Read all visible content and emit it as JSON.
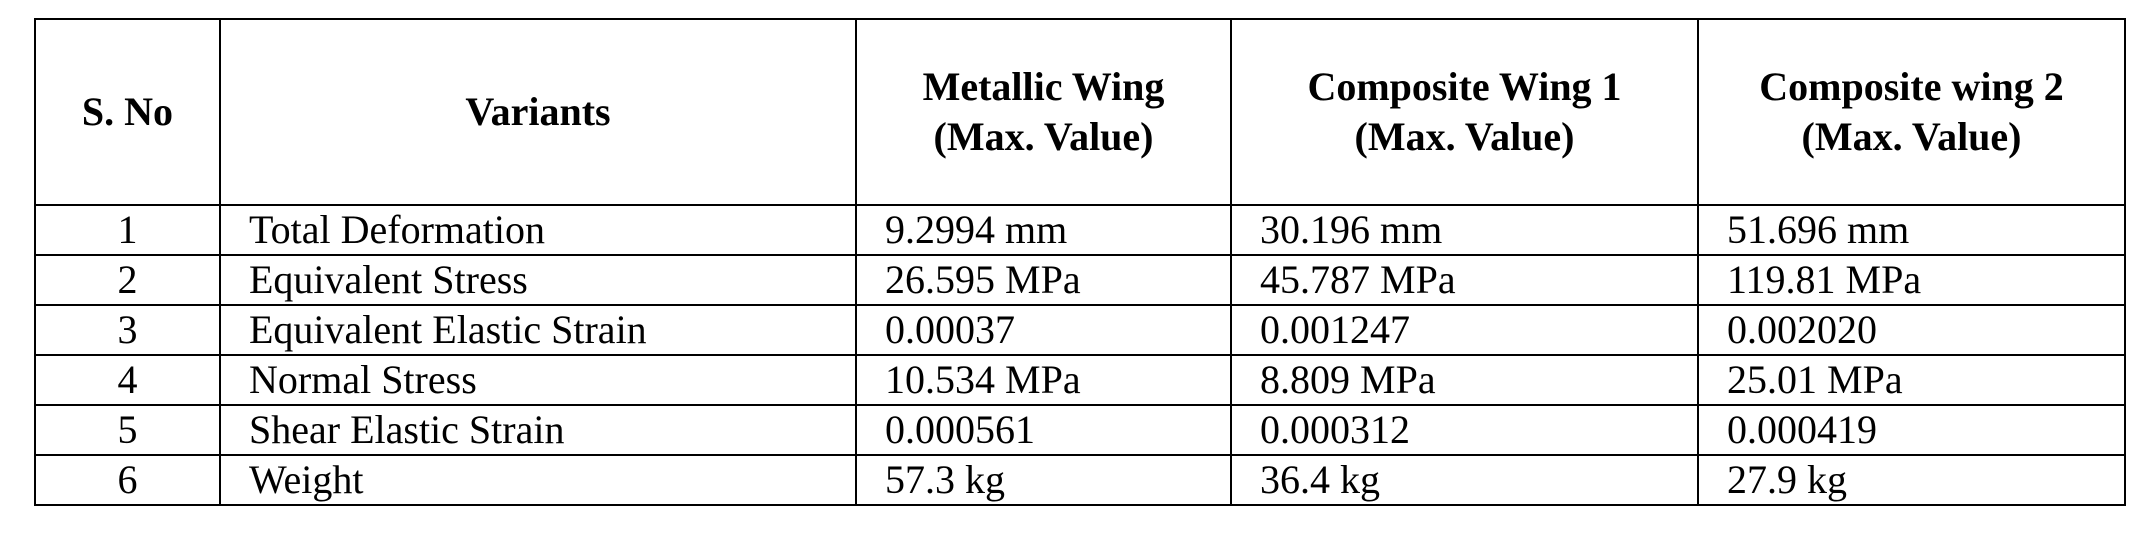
{
  "table": {
    "headers": {
      "sno": "S. No",
      "variants": "Variants",
      "metallic": [
        "Metallic Wing",
        "(Max. Value)"
      ],
      "composite1": [
        "Composite Wing 1",
        "(Max. Value)"
      ],
      "composite2": [
        "Composite wing 2",
        "(Max. Value)"
      ]
    },
    "rows": [
      {
        "sno": "1",
        "variant": "Total Deformation",
        "metallic": "9.2994 mm",
        "composite1": "30.196 mm",
        "composite2": "51.696 mm"
      },
      {
        "sno": "2",
        "variant": "Equivalent Stress",
        "metallic": "26.595 MPa",
        "composite1": "45.787 MPa",
        "composite2": "119.81 MPa"
      },
      {
        "sno": "3",
        "variant": "Equivalent Elastic Strain",
        "metallic": "0.00037",
        "composite1": "0.001247",
        "composite2": "0.002020"
      },
      {
        "sno": "4",
        "variant": "Normal Stress",
        "metallic": "10.534 MPa",
        "composite1": "8.809 MPa",
        "composite2": "25.01 MPa"
      },
      {
        "sno": "5",
        "variant": "Shear Elastic Strain",
        "metallic": "0.000561",
        "composite1": "0.000312",
        "composite2": "0.000419"
      },
      {
        "sno": "6",
        "variant": "Weight",
        "metallic": "57.3 kg",
        "composite1": "36.4 kg",
        "composite2": "27.9 kg"
      }
    ]
  }
}
